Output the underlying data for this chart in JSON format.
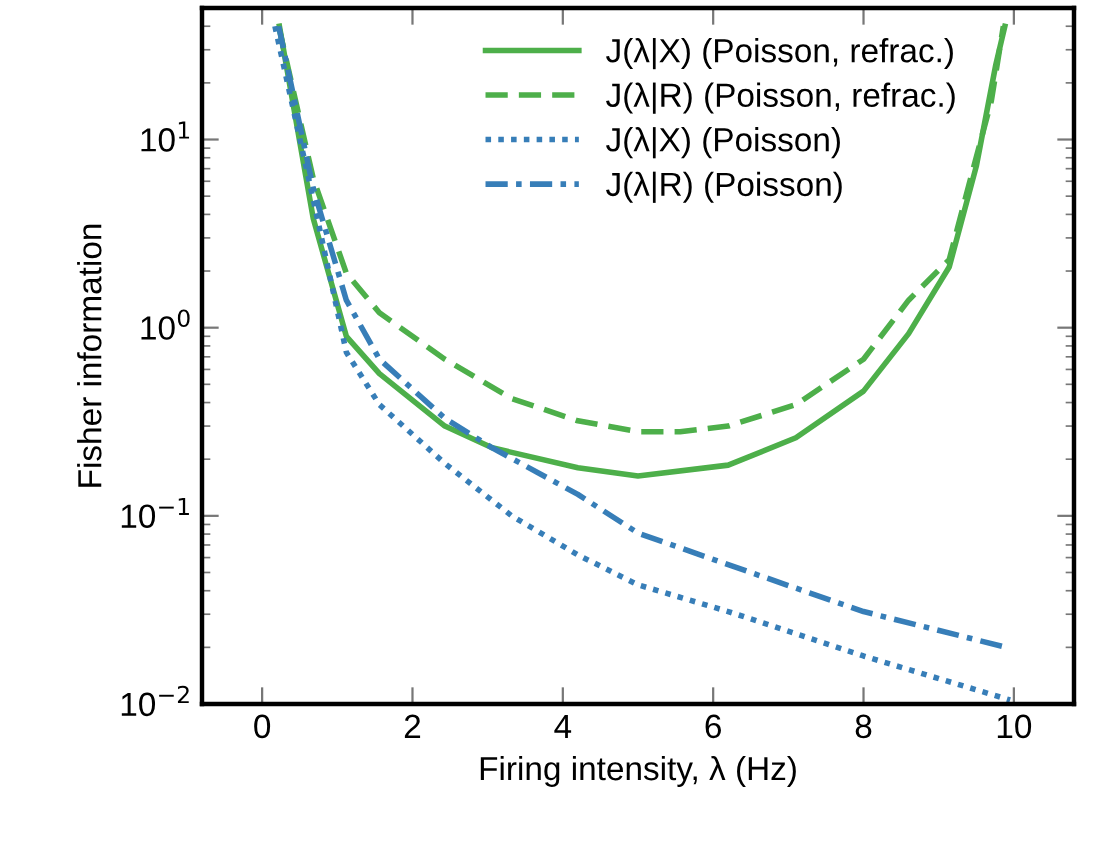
{
  "chart_data": {
    "type": "line",
    "xlabel": "Firing intensity, λ (Hz)",
    "ylabel": "Fisher information",
    "log": "y",
    "grid": false,
    "legend": "top right",
    "xlim": [
      -0.8,
      10.8
    ],
    "xticks": [
      0,
      2,
      4,
      6,
      8,
      10
    ],
    "ylim": [
      0.01,
      50
    ],
    "yticks": [
      {
        "value": 0.01,
        "label": "10$^{−2}$"
      },
      {
        "value": 0.1,
        "label": "10$^{−1}$"
      },
      {
        "value": 1,
        "label": "10$^{0}$"
      },
      {
        "value": 10,
        "label": "10$^{1}$"
      }
    ],
    "series": [
      {
        "name": "J(λ|X) (Poisson, refrac.)",
        "color": "#4daf4a",
        "line_style": "solid",
        "x": [
          0.23,
          0.68,
          1.12,
          1.56,
          2.43,
          3.06,
          4.2,
          5.0,
          6.2,
          7.1,
          8.0,
          8.6,
          9.14,
          9.5,
          9.76,
          9.88
        ],
        "values": [
          40,
          3.8,
          0.9,
          0.57,
          0.3,
          0.23,
          0.18,
          0.163,
          0.186,
          0.26,
          0.46,
          0.93,
          2.1,
          7.2,
          25,
          40
        ]
      },
      {
        "name": "J(λ|R) (Poisson, refrac.)",
        "color": "#4daf4a",
        "line_style": "dashed",
        "x": [
          0.22,
          0.68,
          1.12,
          1.56,
          2.43,
          3.32,
          4.2,
          5.0,
          5.56,
          6.2,
          7.1,
          8.0,
          8.6,
          9.14,
          9.4,
          9.7,
          9.86
        ],
        "values": [
          40,
          6.2,
          1.95,
          1.2,
          0.68,
          0.42,
          0.32,
          0.28,
          0.28,
          0.3,
          0.39,
          0.68,
          1.4,
          2.3,
          5.7,
          16,
          40
        ]
      },
      {
        "name": "J(λ|X) (Poisson)",
        "color": "#377eb8",
        "line_style": "dotted",
        "x": [
          0.17,
          0.68,
          1.12,
          1.56,
          2.43,
          3.32,
          4.2,
          5.0,
          6.2,
          8.0,
          9.95
        ],
        "values": [
          40,
          4.8,
          0.74,
          0.39,
          0.19,
          0.1,
          0.062,
          0.043,
          0.031,
          0.018,
          0.0105
        ]
      },
      {
        "name": "J(λ|R) (Poisson)",
        "color": "#377eb8",
        "line_style": "dashdot",
        "x": [
          0.22,
          0.68,
          1.12,
          1.56,
          2.43,
          3.06,
          4.2,
          5.0,
          6.2,
          8.0,
          9.9
        ],
        "values": [
          40,
          5.5,
          1.4,
          0.68,
          0.33,
          0.23,
          0.13,
          0.081,
          0.055,
          0.031,
          0.02
        ]
      }
    ]
  }
}
